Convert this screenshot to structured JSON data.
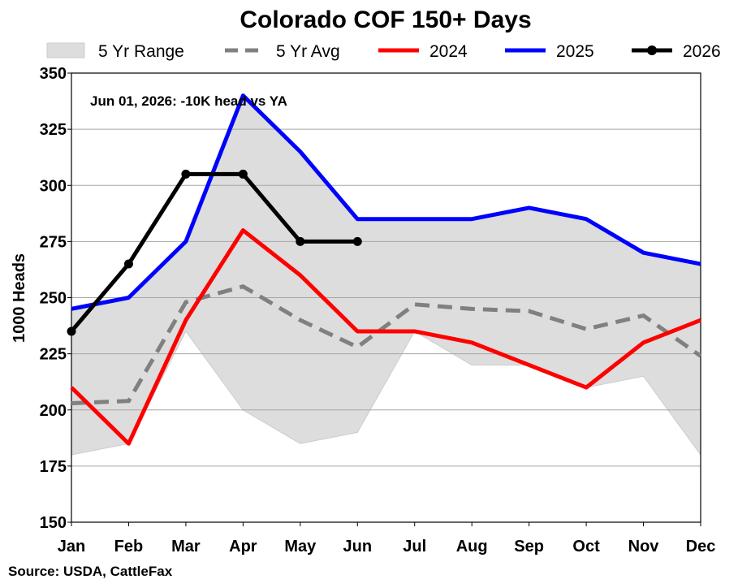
{
  "chart_data": {
    "type": "line",
    "title": "Colorado COF 150+ Days",
    "ylabel": "1000 Heads",
    "xlabel": "",
    "ylim": [
      150,
      350
    ],
    "yticks": [
      150,
      175,
      200,
      225,
      250,
      275,
      300,
      325,
      350
    ],
    "categories": [
      "Jan",
      "Feb",
      "Mar",
      "Apr",
      "May",
      "Jun",
      "Jul",
      "Aug",
      "Sep",
      "Oct",
      "Nov",
      "Dec"
    ],
    "range": {
      "name": "5 Yr Range",
      "color": "#dddddd",
      "min": [
        180,
        185,
        235,
        200,
        185,
        190,
        235,
        220,
        220,
        210,
        215,
        180
      ],
      "max": [
        245,
        250,
        275,
        340,
        315,
        285,
        285,
        285,
        290,
        285,
        270,
        265
      ]
    },
    "series": [
      {
        "name": "5 Yr Avg",
        "color": "#808080",
        "style": "dashed",
        "values": [
          203,
          204,
          248,
          255,
          240,
          228,
          247,
          245,
          244,
          236,
          242,
          224
        ]
      },
      {
        "name": "2024",
        "color": "#ff0000",
        "style": "solid",
        "values": [
          210,
          185,
          240,
          280,
          260,
          235,
          235,
          230,
          220,
          210,
          230,
          240
        ]
      },
      {
        "name": "2025",
        "color": "#0000ff",
        "style": "solid",
        "values": [
          245,
          250,
          275,
          340,
          315,
          285,
          285,
          285,
          290,
          285,
          270,
          265
        ]
      },
      {
        "name": "2026",
        "color": "#000000",
        "style": "solid-markers",
        "values": [
          235,
          265,
          305,
          305,
          275,
          275,
          null,
          null,
          null,
          null,
          null,
          null
        ]
      }
    ],
    "grid": true,
    "legend": "top",
    "annotation": "Jun 01, 2026: -10K head vs YA",
    "source": "Source: USDA, CattleFax"
  }
}
